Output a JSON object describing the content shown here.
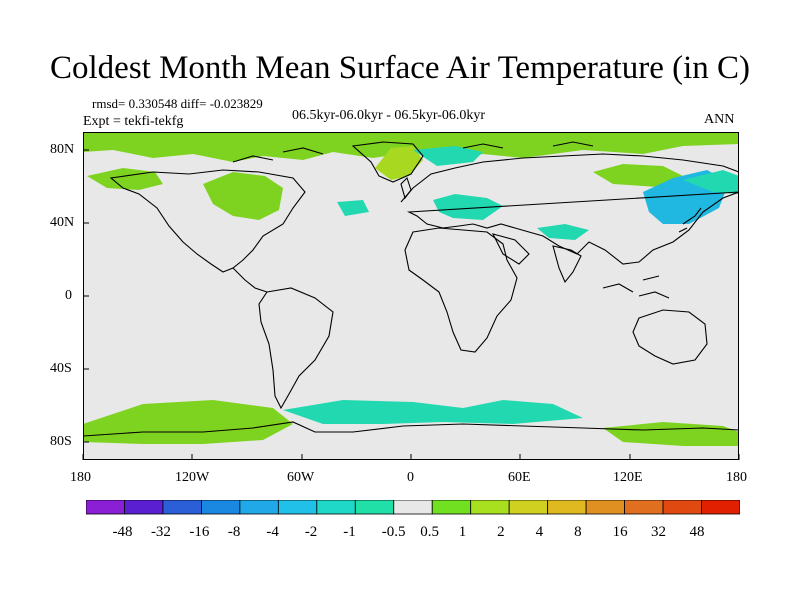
{
  "title": "Coldest Month Mean Surface Air Temperature (in C)",
  "stats": "rmsd= 0.330548 diff= -0.023829",
  "experiment": "Expt = tekfi-tekfg",
  "period": "06.5kyr-06.0kyr - 06.5kyr-06.0kyr",
  "season": "ANN",
  "axes": {
    "x_ticks": [
      "180",
      "120W",
      "60W",
      "0",
      "60E",
      "120E",
      "180"
    ],
    "y_ticks": [
      "80N",
      "40N",
      "0",
      "40S",
      "80S"
    ]
  },
  "colorbar": {
    "colors": [
      "#8a1fd6",
      "#5a1fd0",
      "#2a5fd8",
      "#1a88e0",
      "#20a8e8",
      "#20c0e8",
      "#20d8c8",
      "#20e0a8",
      "#e8e8e8",
      "#70e020",
      "#a8e020",
      "#d0d020",
      "#e0b820",
      "#e09020",
      "#e07020",
      "#e04a10",
      "#e02000"
    ],
    "labels": [
      "-48",
      "-32",
      "-16",
      "-8",
      "-4",
      "-2",
      "-1",
      "-0.5",
      "0.5",
      "1",
      "2",
      "4",
      "8",
      "16",
      "32",
      "48"
    ]
  },
  "colors": {
    "land_sea_base": "#e8e8e8",
    "positive": "#7ed321",
    "positive_strong": "#a8d820",
    "negative": "#22d8b0",
    "negative_strong": "#20b8e0"
  }
}
